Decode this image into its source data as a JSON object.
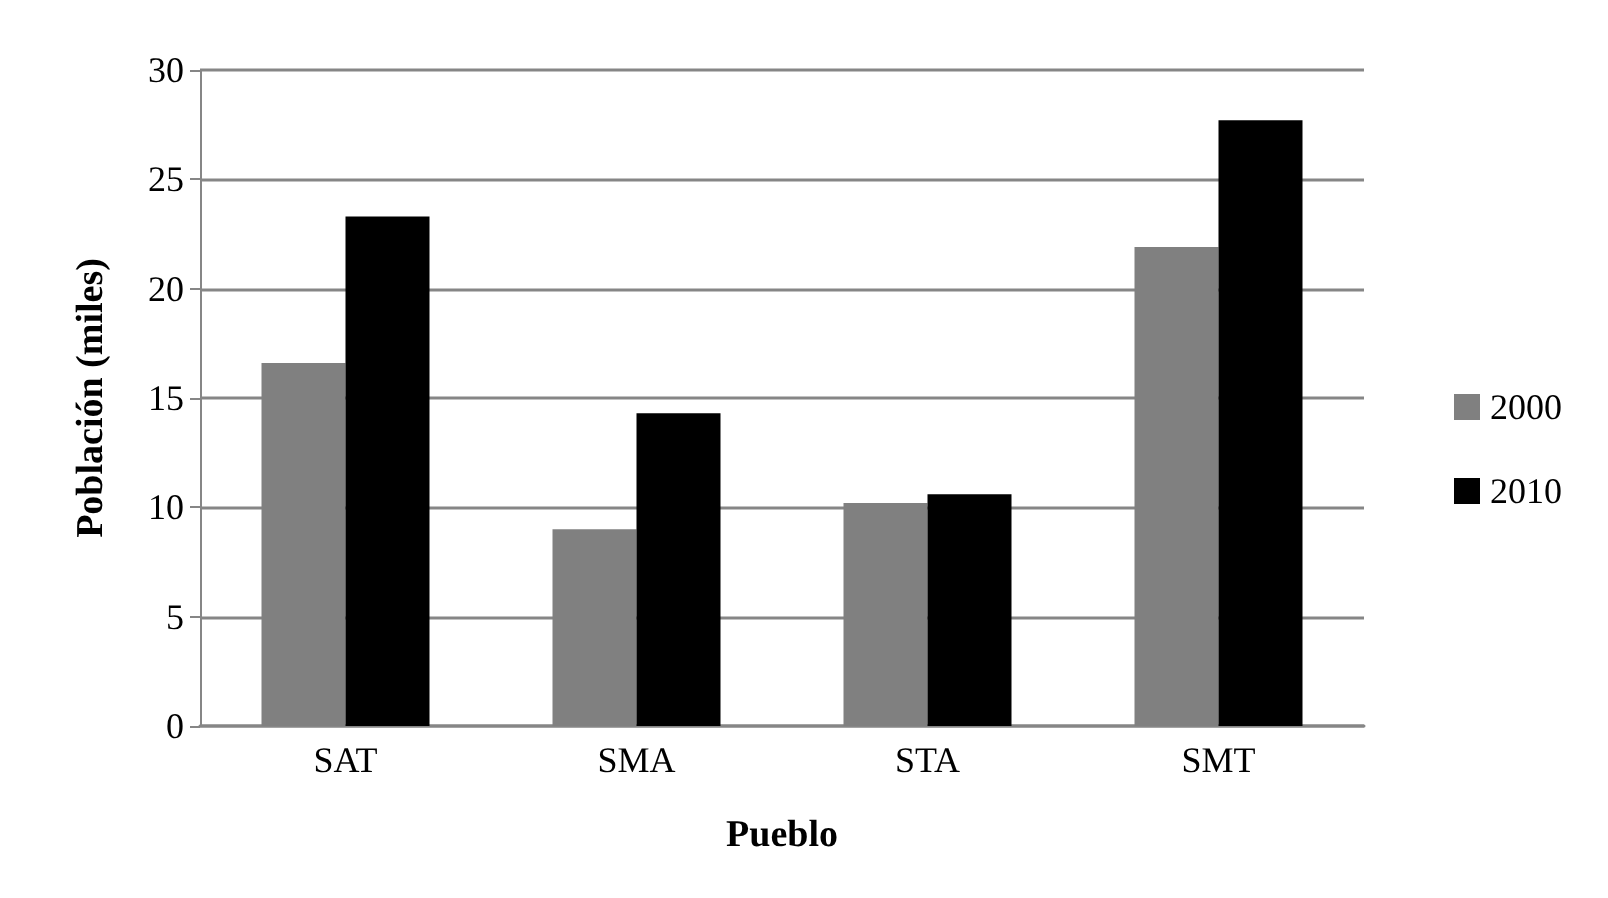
{
  "chart_data": {
    "type": "bar",
    "xlabel": "Pueblo",
    "ylabel": "Población (miles)",
    "categories": [
      "SAT",
      "SMA",
      "STA",
      "SMT"
    ],
    "series": [
      {
        "name": "2000",
        "color": "#808080",
        "values": [
          16.6,
          9.0,
          10.2,
          21.9
        ]
      },
      {
        "name": "2010",
        "color": "#000000",
        "values": [
          23.3,
          14.3,
          10.6,
          27.7
        ]
      }
    ],
    "ylim": [
      0,
      30
    ],
    "yticks": [
      0,
      5,
      10,
      15,
      20,
      25,
      30
    ],
    "grid": "y",
    "legend": "right"
  }
}
